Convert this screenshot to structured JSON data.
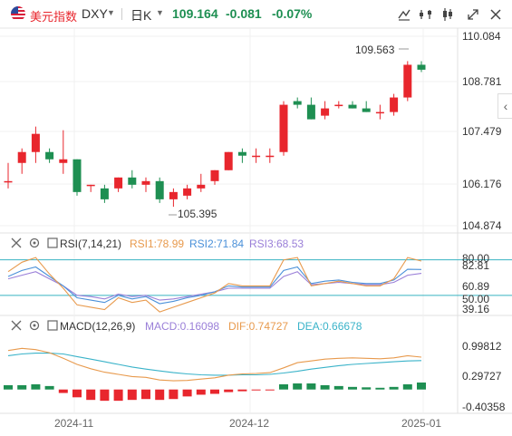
{
  "header": {
    "title": "美元指数",
    "symbol": "DXY",
    "period": "日K",
    "price": "109.164",
    "change": "-0.081",
    "change_pct": "-0.07%"
  },
  "price_axis": [
    "110.084",
    "108.781",
    "107.479",
    "106.176",
    "104.874"
  ],
  "annotations": {
    "high": "109.563",
    "low": "105.395"
  },
  "rsi": {
    "name": "RSI(7,14,21)",
    "rsi1": "RSI1:78.99",
    "rsi2": "RSI2:71.84",
    "rsi3": "RSI3:68.53",
    "axis": [
      "80.00",
      "82.81",
      "60.89",
      "50.00",
      "39.16"
    ]
  },
  "macd": {
    "name": "MACD(12,26,9)",
    "macd": "MACD:0.16098",
    "dif": "DIF:0.74727",
    "dea": "DEA:0.66678",
    "axis": [
      "0.99812",
      "0.29727",
      "-0.40358"
    ]
  },
  "x_axis": [
    "2024-11",
    "2024-12",
    "2025-01"
  ],
  "colors": {
    "up": "#e8262d",
    "down": "#1e8f52",
    "rsi1": "#e89a4d",
    "rsi2": "#4a90d9",
    "rsi3": "#9a7fd8",
    "dif": "#e89a4d",
    "dea": "#3ab3c9",
    "ref_line": "#37b3c2"
  },
  "chart_data": {
    "type": "candlestick",
    "ylim": [
      104.874,
      110.084
    ],
    "candles": [
      [
        106.1,
        106.6,
        105.9,
        106.1
      ],
      [
        106.6,
        107.0,
        106.3,
        106.9
      ],
      [
        106.9,
        107.6,
        106.6,
        107.4
      ],
      [
        106.9,
        107.0,
        106.6,
        106.7
      ],
      [
        106.6,
        107.5,
        106.3,
        106.7
      ],
      [
        106.7,
        106.7,
        105.7,
        105.8
      ],
      [
        106.0,
        106.0,
        105.8,
        106.0
      ],
      [
        105.9,
        106.0,
        105.5,
        105.6
      ],
      [
        105.9,
        106.2,
        105.8,
        106.2
      ],
      [
        106.2,
        106.4,
        105.9,
        106.0
      ],
      [
        106.0,
        106.2,
        105.8,
        106.1
      ],
      [
        106.1,
        106.2,
        105.5,
        105.6
      ],
      [
        105.6,
        105.9,
        105.395,
        105.8
      ],
      [
        105.7,
        106.0,
        105.6,
        105.9
      ],
      [
        105.9,
        106.3,
        105.8,
        106.0
      ],
      [
        106.1,
        106.4,
        106.0,
        106.4
      ],
      [
        106.4,
        106.9,
        106.4,
        106.9
      ],
      [
        106.9,
        107.0,
        106.6,
        106.8
      ],
      [
        106.8,
        107.0,
        106.6,
        106.8
      ],
      [
        106.8,
        107.0,
        106.6,
        106.8
      ],
      [
        106.9,
        108.3,
        106.8,
        108.2
      ],
      [
        108.3,
        108.4,
        108.1,
        108.2
      ],
      [
        108.2,
        108.4,
        107.8,
        107.8
      ],
      [
        107.9,
        108.3,
        107.8,
        108.1
      ],
      [
        108.2,
        108.3,
        108.1,
        108.2
      ],
      [
        108.2,
        108.3,
        108.1,
        108.1
      ],
      [
        108.1,
        108.3,
        108.0,
        108.0
      ],
      [
        108.0,
        108.2,
        107.8,
        108.0
      ],
      [
        108.0,
        108.5,
        107.9,
        108.4
      ],
      [
        108.4,
        109.4,
        108.3,
        109.3
      ],
      [
        109.3,
        109.4,
        109.1,
        109.164
      ]
    ],
    "rsi_ylim": [
      39.16,
      82.81
    ],
    "rsi1": [
      70,
      78,
      82,
      68,
      56,
      42,
      40,
      38,
      48,
      44,
      46,
      36,
      40,
      44,
      48,
      52,
      60,
      58,
      58,
      58,
      80,
      82,
      58,
      60,
      62,
      60,
      58,
      58,
      64,
      82,
      79
    ],
    "rsi2": [
      66,
      71,
      74,
      66,
      58,
      48,
      46,
      44,
      50,
      47,
      49,
      43,
      45,
      48,
      50,
      53,
      58,
      57,
      57,
      57,
      71,
      74,
      60,
      62,
      63,
      61,
      60,
      60,
      63,
      72,
      71.84
    ],
    "rsi3": [
      64,
      67,
      70,
      64,
      58,
      50,
      49,
      47,
      51,
      49,
      50,
      46,
      47,
      49,
      51,
      53,
      56,
      56,
      56,
      56,
      66,
      70,
      59,
      60,
      61,
      60,
      59,
      59,
      61,
      67,
      68.53
    ],
    "macd_ylim": [
      -0.40358,
      0.99812
    ],
    "dif": [
      0.9,
      0.95,
      0.92,
      0.85,
      0.72,
      0.58,
      0.48,
      0.4,
      0.35,
      0.3,
      0.28,
      0.22,
      0.2,
      0.21,
      0.24,
      0.27,
      0.33,
      0.36,
      0.37,
      0.39,
      0.5,
      0.62,
      0.66,
      0.7,
      0.72,
      0.73,
      0.72,
      0.71,
      0.73,
      0.78,
      0.74727
    ],
    "dea": [
      0.78,
      0.82,
      0.84,
      0.84,
      0.82,
      0.76,
      0.7,
      0.64,
      0.58,
      0.52,
      0.47,
      0.43,
      0.39,
      0.36,
      0.34,
      0.33,
      0.33,
      0.34,
      0.34,
      0.35,
      0.38,
      0.42,
      0.47,
      0.51,
      0.55,
      0.58,
      0.6,
      0.62,
      0.64,
      0.66,
      0.66678
    ],
    "hist": [
      0.1,
      0.1,
      0.12,
      0.08,
      -0.08,
      -0.18,
      -0.24,
      -0.26,
      -0.26,
      -0.24,
      -0.22,
      -0.24,
      -0.22,
      -0.16,
      -0.12,
      -0.1,
      -0.06,
      -0.04,
      -0.02,
      -0.02,
      0.12,
      0.14,
      0.14,
      0.1,
      0.08,
      0.06,
      0.05,
      0.04,
      0.06,
      0.12,
      0.16098
    ]
  }
}
